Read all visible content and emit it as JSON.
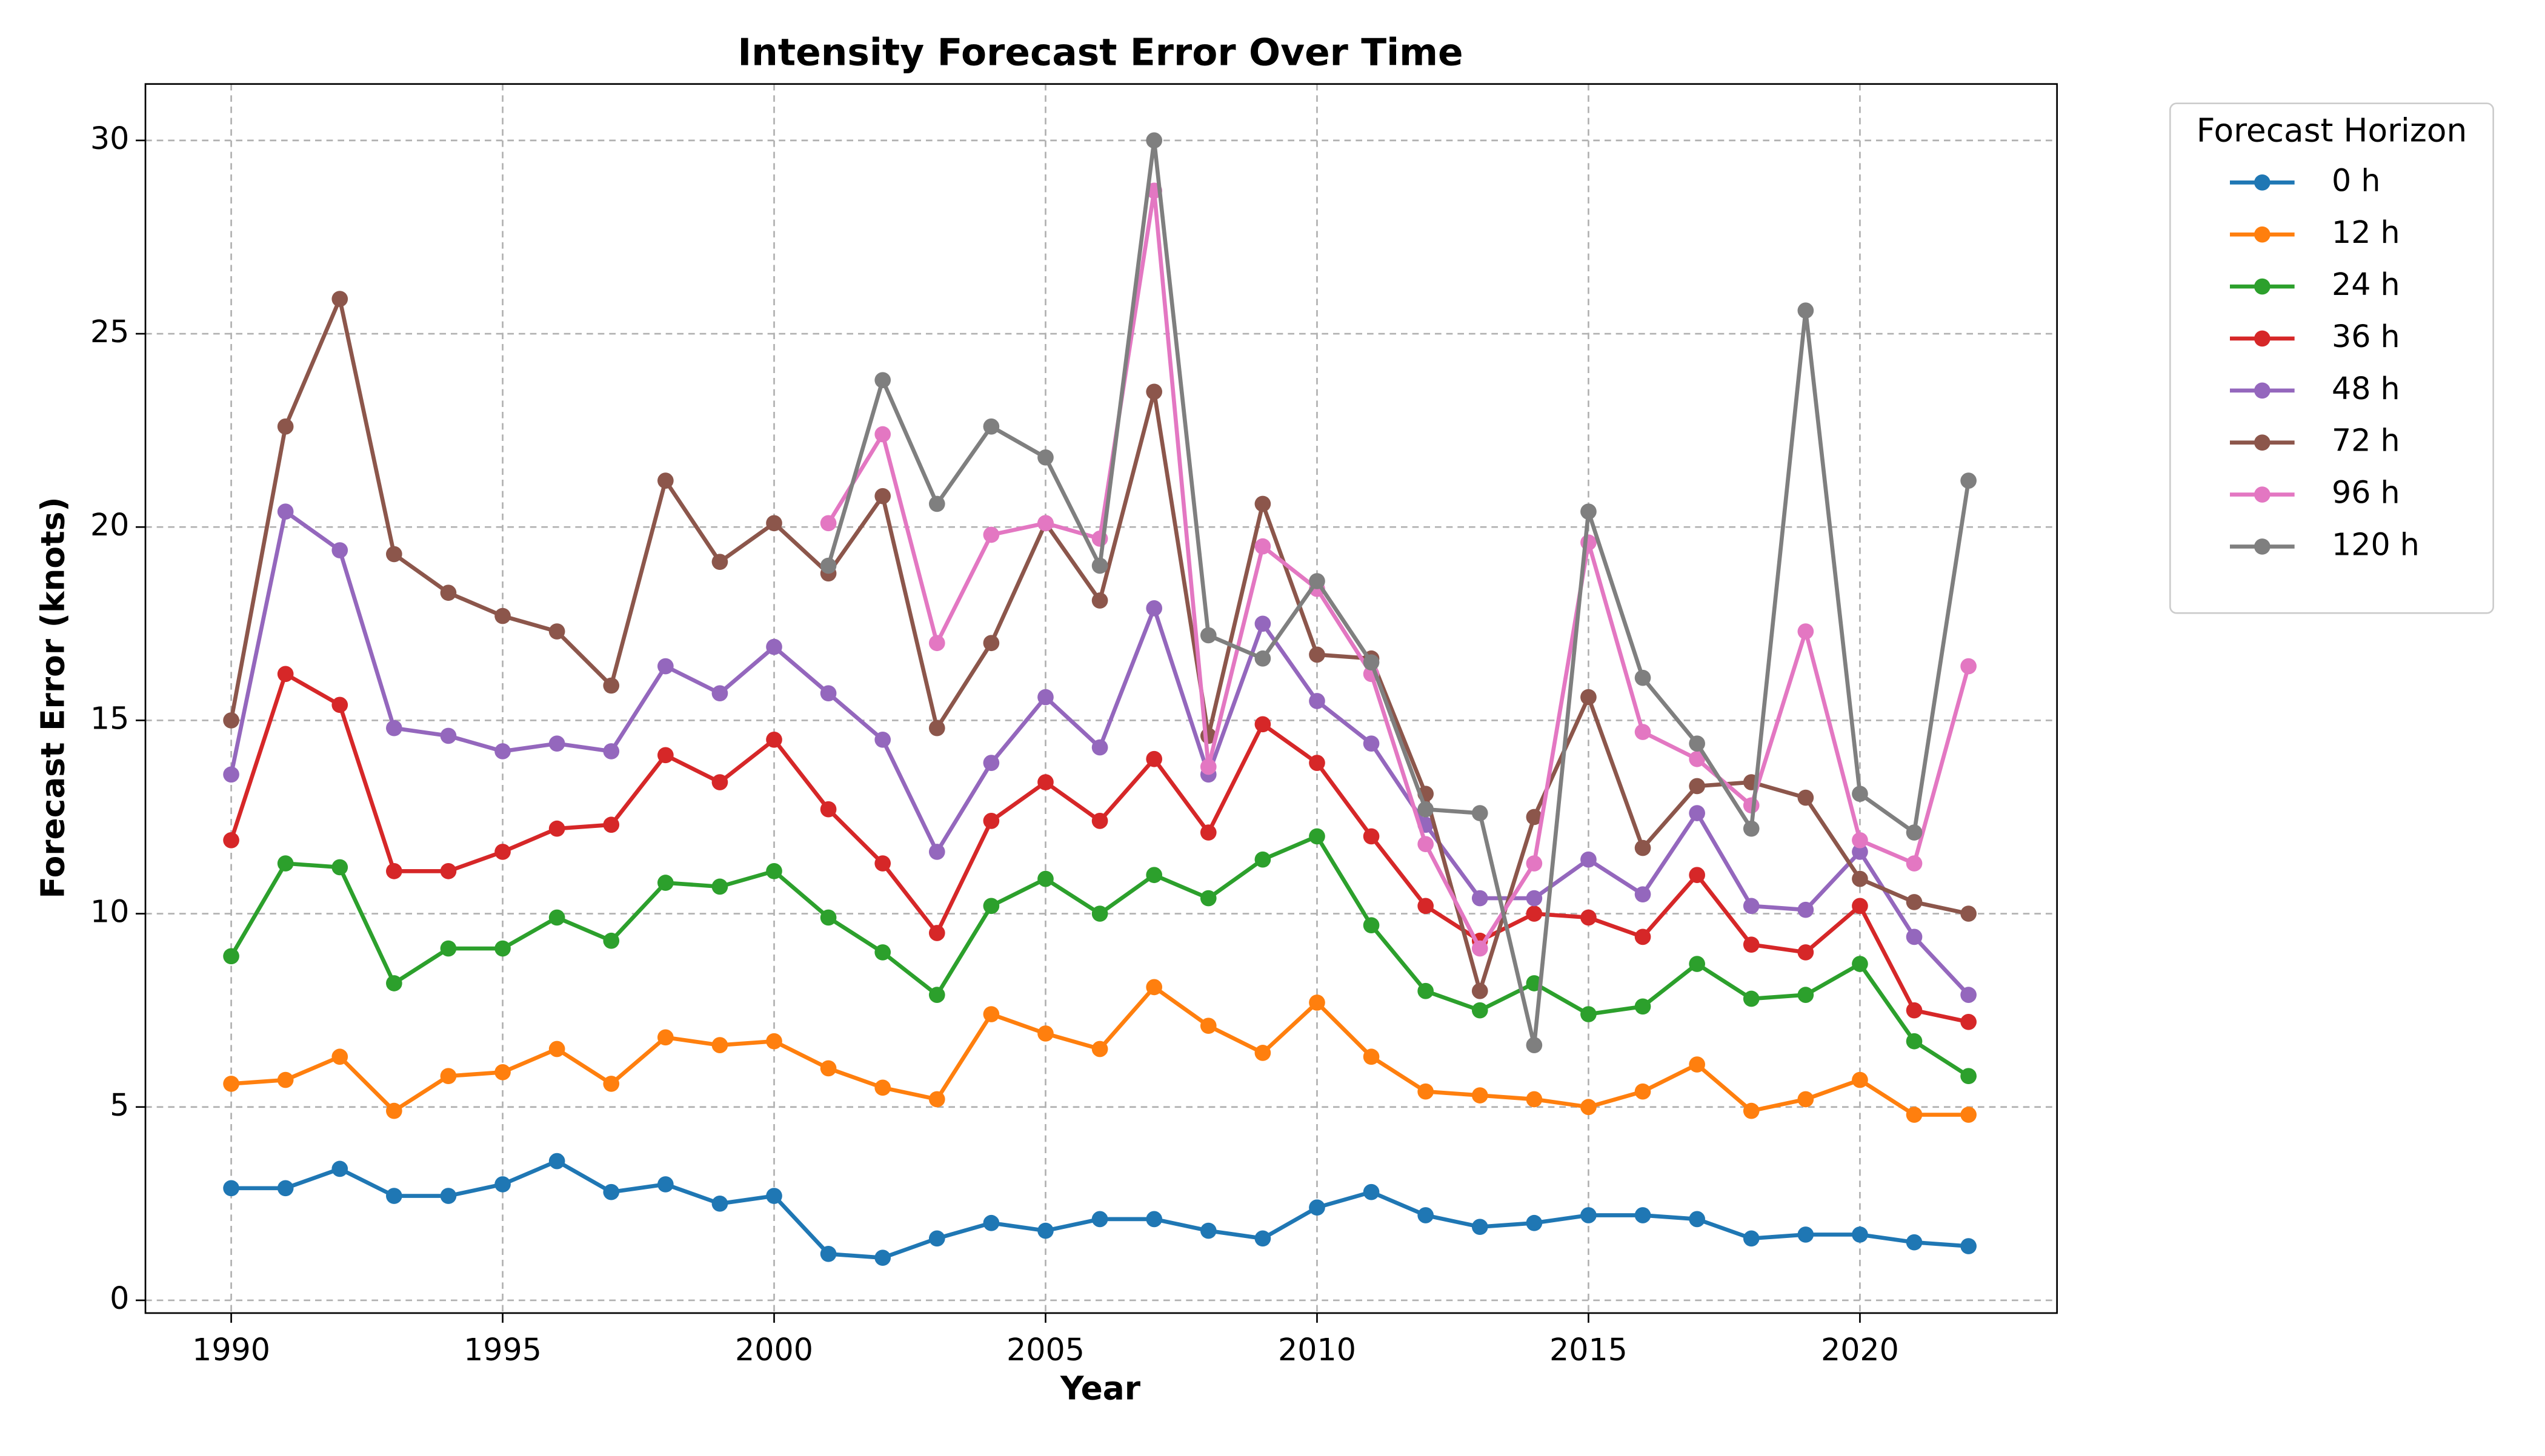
{
  "chart_data": {
    "type": "line",
    "title": "Intensity Forecast Error Over Time",
    "xlabel": "Year",
    "ylabel": "Forecast Error (knots)",
    "legend_title": "Forecast Horizon",
    "legend": "outside upper right",
    "grid": true,
    "x": [
      1990,
      1991,
      1992,
      1993,
      1994,
      1995,
      1996,
      1997,
      1998,
      1999,
      2000,
      2001,
      2002,
      2003,
      2004,
      2005,
      2006,
      2007,
      2008,
      2009,
      2010,
      2011,
      2012,
      2013,
      2014,
      2015,
      2016,
      2017,
      2018,
      2019,
      2020,
      2021,
      2022
    ],
    "xlim": [
      1988.42,
      2023.63
    ],
    "xticks": [
      1990,
      1995,
      2000,
      2005,
      2010,
      2015,
      2020
    ],
    "ylim": [
      -0.33,
      31.46
    ],
    "yticks": [
      0,
      5,
      10,
      15,
      20,
      25,
      30
    ],
    "series": [
      {
        "name": "0 h",
        "color": "#1f77b4",
        "values": [
          2.9,
          2.9,
          3.4,
          2.7,
          2.7,
          3.0,
          3.6,
          2.8,
          3.0,
          2.5,
          2.7,
          1.2,
          1.1,
          1.6,
          2.0,
          1.8,
          2.1,
          2.1,
          1.8,
          1.6,
          2.4,
          2.8,
          2.2,
          1.9,
          2.0,
          2.2,
          2.2,
          2.1,
          1.6,
          1.7,
          1.7,
          1.5,
          1.4
        ]
      },
      {
        "name": "12 h",
        "color": "#ff7f0e",
        "values": [
          5.6,
          5.7,
          6.3,
          4.9,
          5.8,
          5.9,
          6.5,
          5.6,
          6.8,
          6.6,
          6.7,
          6.0,
          5.5,
          5.2,
          7.4,
          6.9,
          6.5,
          8.1,
          7.1,
          6.4,
          7.7,
          6.3,
          5.4,
          5.3,
          5.2,
          5.0,
          5.4,
          6.1,
          4.9,
          5.2,
          5.7,
          4.8,
          4.8
        ]
      },
      {
        "name": "24 h",
        "color": "#2ca02c",
        "values": [
          8.9,
          11.3,
          11.2,
          8.2,
          9.1,
          9.1,
          9.9,
          9.3,
          10.8,
          10.7,
          11.1,
          9.9,
          9.0,
          7.9,
          10.2,
          10.9,
          10.0,
          11.0,
          10.4,
          11.4,
          12.0,
          9.7,
          8.0,
          7.5,
          8.2,
          7.4,
          7.6,
          8.7,
          7.8,
          7.9,
          8.7,
          6.7,
          5.8
        ]
      },
      {
        "name": "36 h",
        "color": "#d62728",
        "values": [
          11.9,
          16.2,
          15.4,
          11.1,
          11.1,
          11.6,
          12.2,
          12.3,
          14.1,
          13.4,
          14.5,
          12.7,
          11.3,
          9.5,
          12.4,
          13.4,
          12.4,
          14.0,
          12.1,
          14.9,
          13.9,
          12.0,
          10.2,
          9.3,
          10.0,
          9.9,
          9.4,
          11.0,
          9.2,
          9.0,
          10.2,
          7.5,
          7.2
        ]
      },
      {
        "name": "48 h",
        "color": "#9467bd",
        "values": [
          13.6,
          20.4,
          19.4,
          14.8,
          14.6,
          14.2,
          14.4,
          14.2,
          16.4,
          15.7,
          16.9,
          15.7,
          14.5,
          11.6,
          13.9,
          15.6,
          14.3,
          17.9,
          13.6,
          17.5,
          15.5,
          14.4,
          12.3,
          10.4,
          10.4,
          11.4,
          10.5,
          12.6,
          10.2,
          10.1,
          11.6,
          9.4,
          7.9
        ]
      },
      {
        "name": "72 h",
        "color": "#8c564b",
        "values": [
          15.0,
          22.6,
          25.9,
          19.3,
          18.3,
          17.7,
          17.3,
          15.9,
          21.2,
          19.1,
          20.1,
          18.8,
          20.8,
          14.8,
          17.0,
          20.1,
          18.1,
          23.5,
          14.6,
          20.6,
          16.7,
          16.6,
          13.1,
          8.0,
          12.5,
          15.6,
          11.7,
          13.3,
          13.4,
          13.0,
          10.9,
          10.3,
          10.0
        ]
      },
      {
        "name": "96 h",
        "color": "#e377c2",
        "values": [
          null,
          null,
          null,
          null,
          null,
          null,
          null,
          null,
          null,
          null,
          null,
          20.1,
          22.4,
          17.0,
          19.8,
          20.1,
          19.7,
          28.7,
          13.8,
          19.5,
          18.4,
          16.2,
          11.8,
          9.1,
          11.3,
          19.6,
          14.7,
          14.0,
          12.8,
          17.3,
          11.9,
          11.3,
          16.4
        ]
      },
      {
        "name": "120 h",
        "color": "#7f7f7f",
        "values": [
          null,
          null,
          null,
          null,
          null,
          null,
          null,
          null,
          null,
          null,
          null,
          19.0,
          23.8,
          20.6,
          22.6,
          21.8,
          19.0,
          30.0,
          17.2,
          16.6,
          18.6,
          16.5,
          12.7,
          12.6,
          6.6,
          20.4,
          16.1,
          14.4,
          12.2,
          25.6,
          13.1,
          12.1,
          21.2
        ]
      }
    ]
  }
}
